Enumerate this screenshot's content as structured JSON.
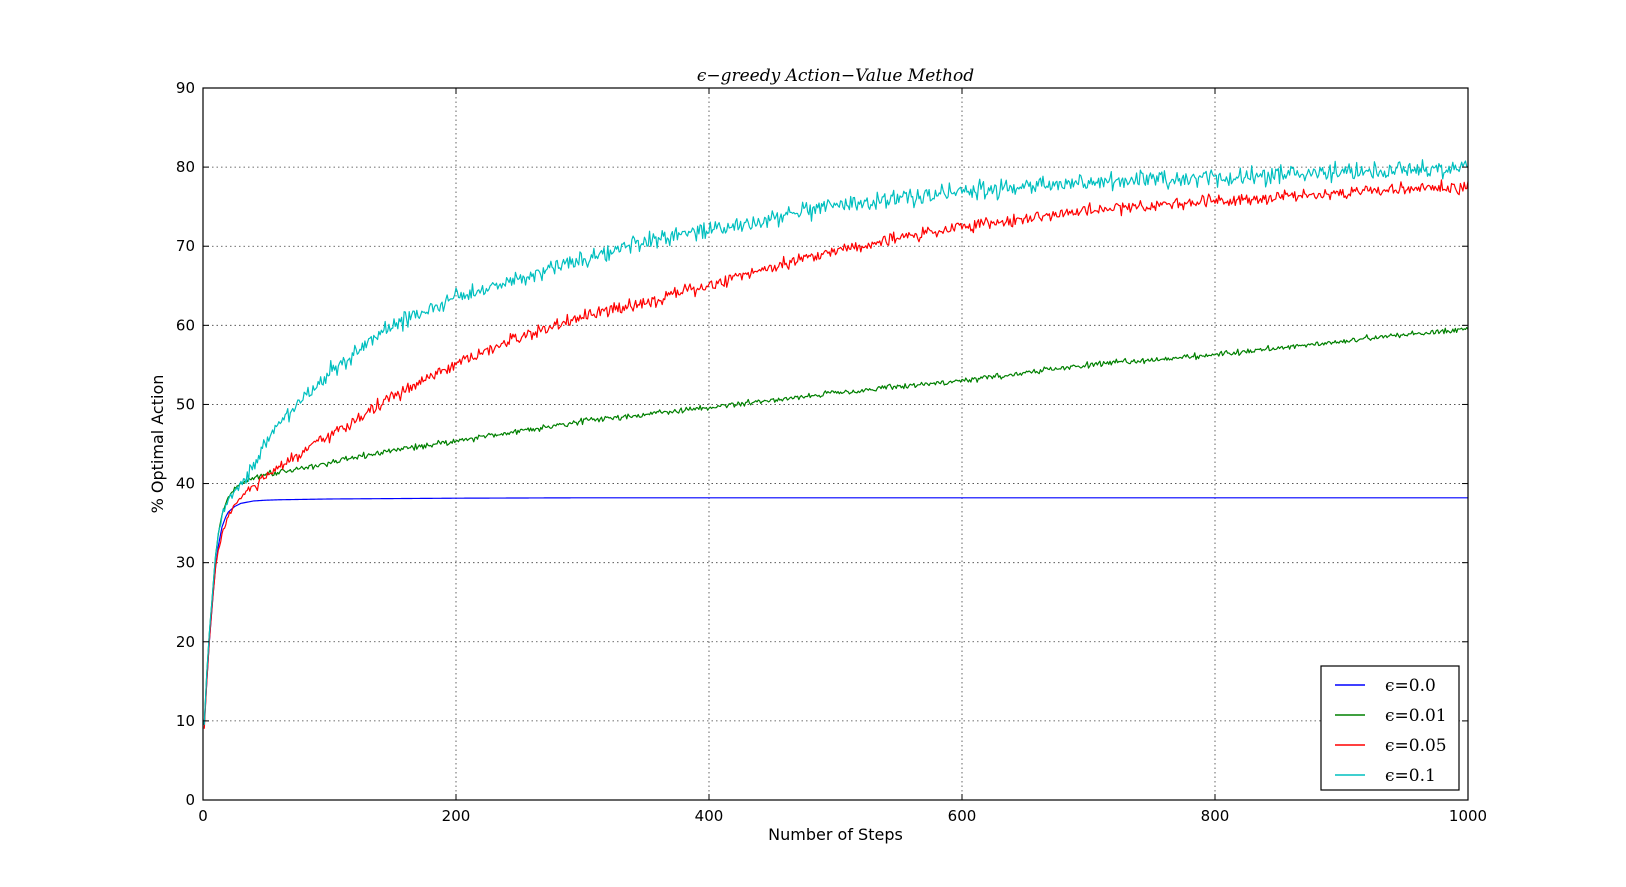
{
  "chart_data": {
    "type": "line",
    "title": "ϵ−greedy Action−Value Method",
    "xlabel": "Number of Steps",
    "ylabel": "% Optimal Action",
    "xlim": [
      0,
      1000
    ],
    "ylim": [
      0,
      90
    ],
    "xticks": [
      "0",
      "200",
      "400",
      "600",
      "800",
      "1000"
    ],
    "yticks": [
      "0",
      "10",
      "20",
      "30",
      "40",
      "50",
      "60",
      "70",
      "80",
      "90"
    ],
    "grid": true,
    "legend_position": "lower-right",
    "series": [
      {
        "name": "ϵ=0.0",
        "color": "#0000ff",
        "noise": 0,
        "x": [
          1,
          3,
          5,
          8,
          10,
          12,
          15,
          18,
          20,
          25,
          30,
          40,
          50,
          60,
          80,
          100,
          150,
          200,
          300,
          400,
          500,
          600,
          700,
          800,
          900,
          1000
        ],
        "values": [
          9.5,
          15,
          20,
          26,
          29.5,
          32,
          34.5,
          35.8,
          36.4,
          37.1,
          37.5,
          37.8,
          37.9,
          37.95,
          38,
          38.05,
          38.1,
          38.15,
          38.2,
          38.2,
          38.2,
          38.2,
          38.2,
          38.2,
          38.2,
          38.2
        ]
      },
      {
        "name": "ϵ=0.01",
        "color": "#008000",
        "noise": 0.18,
        "x": [
          1,
          3,
          5,
          8,
          10,
          12,
          15,
          18,
          20,
          25,
          30,
          40,
          50,
          60,
          80,
          100,
          150,
          200,
          300,
          400,
          500,
          600,
          700,
          800,
          900,
          1000
        ],
        "values": [
          9.5,
          16,
          21,
          27,
          31,
          33.5,
          36,
          37.5,
          38.3,
          39.3,
          40,
          40.8,
          41.2,
          41.5,
          42,
          42.6,
          44.2,
          45.4,
          47.9,
          49.6,
          51.5,
          53,
          55,
          56.3,
          58,
          59.6
        ]
      },
      {
        "name": "ϵ=0.05",
        "color": "#ff0000",
        "noise": 0.4,
        "x": [
          1,
          3,
          5,
          8,
          10,
          12,
          15,
          18,
          20,
          25,
          30,
          40,
          50,
          60,
          80,
          100,
          150,
          200,
          250,
          300,
          350,
          400,
          450,
          500,
          550,
          600,
          650,
          700,
          750,
          800,
          850,
          900,
          950,
          1000
        ],
        "values": [
          9,
          15,
          20,
          26,
          29.5,
          31.5,
          33.5,
          35,
          36,
          37.3,
          38.2,
          39.6,
          40.8,
          42,
          44,
          46,
          51,
          55,
          58.5,
          61,
          63,
          65,
          67.5,
          69.5,
          71,
          72.5,
          73.5,
          74.5,
          75.2,
          75.8,
          76.3,
          76.8,
          77.2,
          77.5
        ]
      },
      {
        "name": "ϵ=0.1",
        "color": "#00bfbf",
        "noise": 0.55,
        "x": [
          1,
          3,
          5,
          8,
          10,
          12,
          15,
          18,
          20,
          25,
          30,
          40,
          50,
          60,
          80,
          100,
          150,
          200,
          250,
          300,
          350,
          400,
          450,
          500,
          550,
          600,
          650,
          700,
          750,
          800,
          850,
          900,
          950,
          1000
        ],
        "values": [
          9.5,
          16,
          21,
          27,
          31,
          33.5,
          36,
          37.3,
          38,
          39,
          40,
          42.5,
          45,
          47.5,
          51,
          54,
          60,
          63.5,
          66,
          68.5,
          70.5,
          72,
          73.5,
          75,
          76,
          77,
          77.5,
          78,
          78.3,
          78.7,
          79,
          79.3,
          79.7,
          80
        ]
      }
    ]
  }
}
